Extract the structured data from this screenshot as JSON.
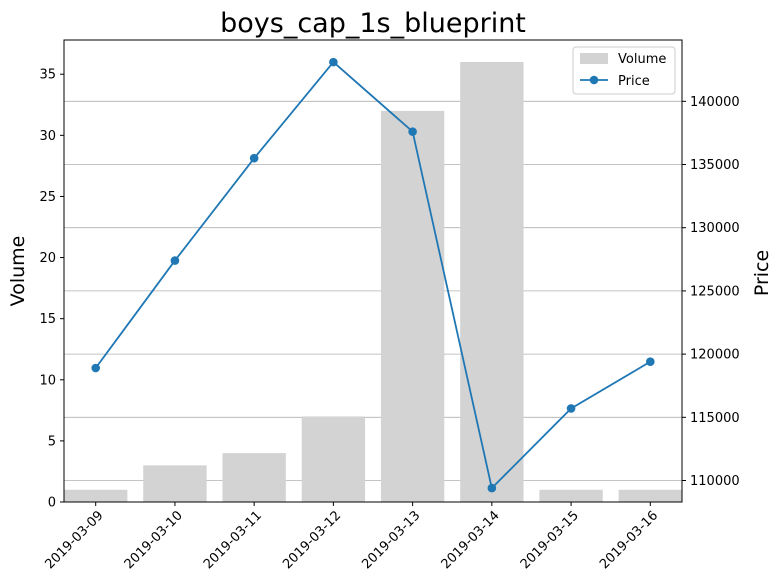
{
  "chart_data": {
    "type": "bar",
    "title": "boys_cap_1s_blueprint",
    "xlabel": "",
    "ylabel": "Volume",
    "y2label": "Price",
    "categories": [
      "2019-03-09",
      "2019-03-10",
      "2019-03-11",
      "2019-03-12",
      "2019-03-13",
      "2019-03-14",
      "2019-03-15",
      "2019-03-16"
    ],
    "series": [
      {
        "name": "Volume",
        "type": "bar",
        "axis": "left",
        "color": "#d3d3d3",
        "values": [
          1,
          3,
          4,
          7,
          32,
          36,
          1,
          1
        ]
      },
      {
        "name": "Price",
        "type": "line",
        "axis": "right",
        "color": "#1f77b4",
        "marker": "circle",
        "values": [
          118900,
          127400,
          135500,
          143100,
          137600,
          109400,
          115700,
          119400
        ]
      }
    ],
    "ylim": [
      0,
      37.8
    ],
    "y_ticks": [
      0,
      5,
      10,
      15,
      20,
      25,
      30,
      35
    ],
    "y2lim": [
      108300,
      144850
    ],
    "y2_ticks": [
      110000,
      115000,
      120000,
      125000,
      130000,
      135000,
      140000
    ],
    "grid": "horizontal lines on right axis",
    "legend": {
      "position": "top-right",
      "entries": [
        "Volume",
        "Price"
      ]
    },
    "x_tick_rotation": 45
  }
}
